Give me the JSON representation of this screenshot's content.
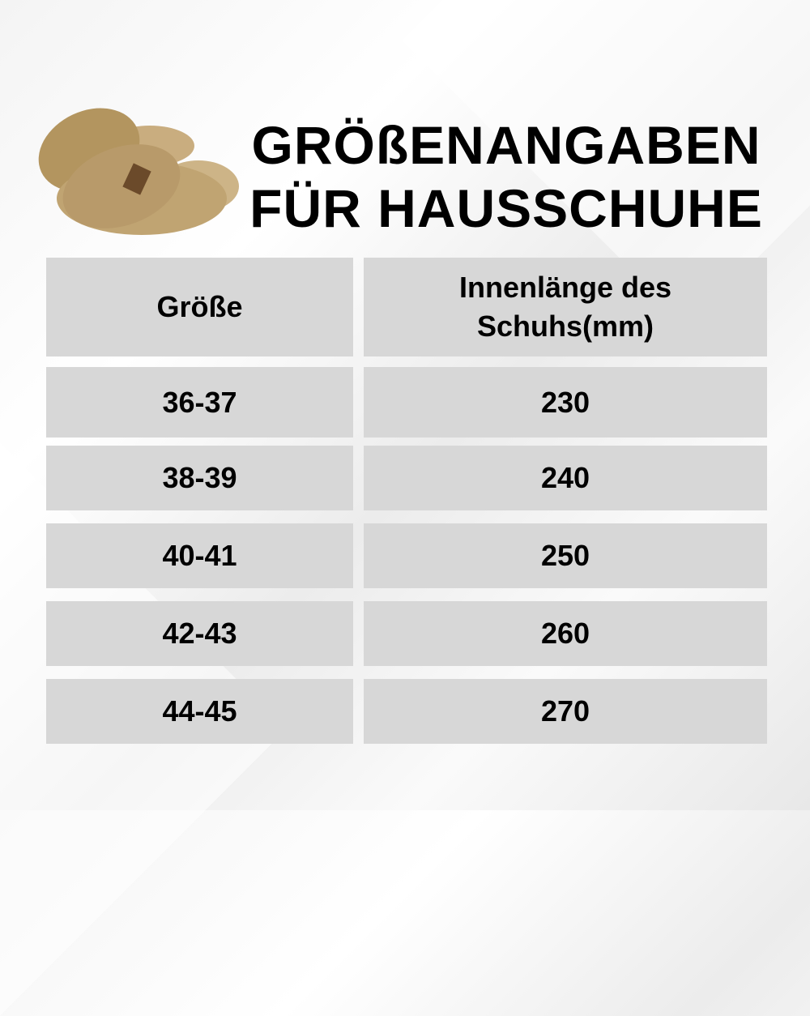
{
  "title": {
    "line1": "GRÖßENANGABEN",
    "line2": "FÜR HAUSSCHUHE"
  },
  "table": {
    "headers": [
      "Größe",
      "Innenlänge des Schuhs(mm)"
    ],
    "rows": [
      {
        "size": "36-37",
        "length": "230"
      },
      {
        "size": "38-39",
        "length": "240"
      },
      {
        "size": "40-41",
        "length": "250"
      },
      {
        "size": "42-43",
        "length": "260"
      },
      {
        "size": "44-45",
        "length": "270"
      }
    ]
  },
  "colors": {
    "cell": "#d7d7d7",
    "text": "#000000",
    "slipper": "#b89a6a"
  }
}
